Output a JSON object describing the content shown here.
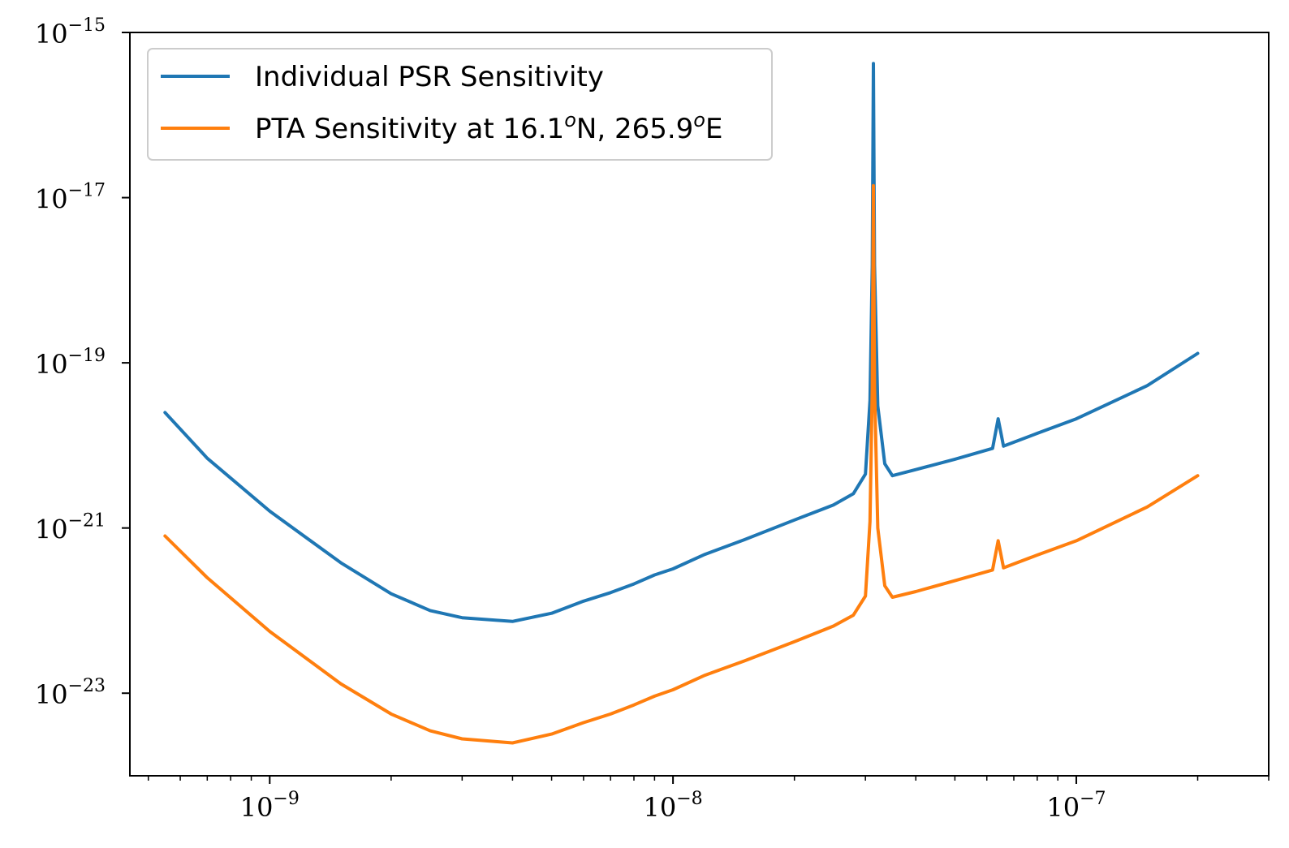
{
  "chart_data": {
    "type": "line",
    "x_scale": "log",
    "y_scale": "log",
    "xlim": [
      4.5e-10,
      3e-07
    ],
    "ylim": [
      1e-24,
      1e-15
    ],
    "x_ticks": [
      {
        "value": 1e-09,
        "base": "10",
        "exp": "−9"
      },
      {
        "value": 1e-08,
        "base": "10",
        "exp": "−8"
      },
      {
        "value": 1e-07,
        "base": "10",
        "exp": "−7"
      }
    ],
    "y_ticks": [
      {
        "value": 1e-15,
        "base": "10",
        "exp": "−15"
      },
      {
        "value": 1e-17,
        "base": "10",
        "exp": "−17"
      },
      {
        "value": 1e-19,
        "base": "10",
        "exp": "−19"
      },
      {
        "value": 1e-21,
        "base": "10",
        "exp": "−21"
      },
      {
        "value": 1e-23,
        "base": "10",
        "exp": "−23"
      }
    ],
    "legend_position": "top-left",
    "series": [
      {
        "name": "Individual PSR Sensitivity",
        "color": "#1f77b4",
        "points": [
          [
            5.5e-10,
            2.5e-20
          ],
          [
            7e-10,
            7e-21
          ],
          [
            1e-09,
            1.6e-21
          ],
          [
            1.5e-09,
            3.8e-22
          ],
          [
            2e-09,
            1.6e-22
          ],
          [
            2.5e-09,
            1e-22
          ],
          [
            3e-09,
            8.2e-23
          ],
          [
            4e-09,
            7.4e-23
          ],
          [
            5e-09,
            9.3e-23
          ],
          [
            6e-09,
            1.3e-22
          ],
          [
            7e-09,
            1.65e-22
          ],
          [
            8e-09,
            2.1e-22
          ],
          [
            9e-09,
            2.7e-22
          ],
          [
            1e-08,
            3.2e-22
          ],
          [
            1.2e-08,
            4.8e-22
          ],
          [
            1.5e-08,
            7.2e-22
          ],
          [
            2e-08,
            1.25e-21
          ],
          [
            2.5e-08,
            1.9e-21
          ],
          [
            2.8e-08,
            2.6e-21
          ],
          [
            3e-08,
            4.5e-21
          ],
          [
            3.08e-08,
            3.5e-20
          ],
          [
            3.12e-08,
            1.5e-18
          ],
          [
            3.14e-08,
            4.2e-16
          ],
          [
            3.16e-08,
            1.5e-18
          ],
          [
            3.22e-08,
            3e-20
          ],
          [
            3.35e-08,
            6e-21
          ],
          [
            3.5e-08,
            4.3e-21
          ],
          [
            4e-08,
            5.1e-21
          ],
          [
            5e-08,
            6.8e-21
          ],
          [
            6.2e-08,
            9.2e-21
          ],
          [
            6.4e-08,
            2.1e-20
          ],
          [
            6.6e-08,
            9.8e-21
          ],
          [
            8e-08,
            1.4e-20
          ],
          [
            1e-07,
            2.1e-20
          ],
          [
            1.5e-07,
            5.3e-20
          ],
          [
            2e-07,
            1.3e-19
          ]
        ]
      },
      {
        "name": "PTA Sensitivity at 16.1$^o$N, 265.9$^o$E",
        "color": "#ff7f0e",
        "points": [
          [
            5.5e-10,
            8e-22
          ],
          [
            7e-10,
            2.5e-22
          ],
          [
            1e-09,
            5.6e-23
          ],
          [
            1.5e-09,
            1.3e-23
          ],
          [
            2e-09,
            5.6e-24
          ],
          [
            2.5e-09,
            3.5e-24
          ],
          [
            3e-09,
            2.8e-24
          ],
          [
            4e-09,
            2.5e-24
          ],
          [
            5e-09,
            3.2e-24
          ],
          [
            6e-09,
            4.4e-24
          ],
          [
            7e-09,
            5.6e-24
          ],
          [
            8e-09,
            7.2e-24
          ],
          [
            9e-09,
            9.2e-24
          ],
          [
            1e-08,
            1.1e-23
          ],
          [
            1.2e-08,
            1.65e-23
          ],
          [
            1.5e-08,
            2.45e-23
          ],
          [
            2e-08,
            4.2e-23
          ],
          [
            2.5e-08,
            6.5e-23
          ],
          [
            2.8e-08,
            8.8e-23
          ],
          [
            3e-08,
            1.5e-22
          ],
          [
            3.08e-08,
            1.2e-21
          ],
          [
            3.12e-08,
            5e-20
          ],
          [
            3.14e-08,
            1.4e-17
          ],
          [
            3.16e-08,
            5e-20
          ],
          [
            3.22e-08,
            1e-21
          ],
          [
            3.35e-08,
            2e-22
          ],
          [
            3.5e-08,
            1.45e-22
          ],
          [
            4e-08,
            1.7e-22
          ],
          [
            5e-08,
            2.3e-22
          ],
          [
            6.2e-08,
            3.1e-22
          ],
          [
            6.4e-08,
            7e-22
          ],
          [
            6.6e-08,
            3.3e-22
          ],
          [
            8e-08,
            4.7e-22
          ],
          [
            1e-07,
            7e-22
          ],
          [
            1.5e-07,
            1.8e-21
          ],
          [
            2e-07,
            4.3e-21
          ]
        ]
      }
    ]
  },
  "legend": {
    "entry1": {
      "label": "Individual PSR Sensitivity"
    },
    "entry2": {
      "prefix": "PTA Sensitivity at 16.1",
      "sup1": "o",
      "mid": "N, 265.9",
      "sup2": "o",
      "suffix": "E"
    }
  }
}
